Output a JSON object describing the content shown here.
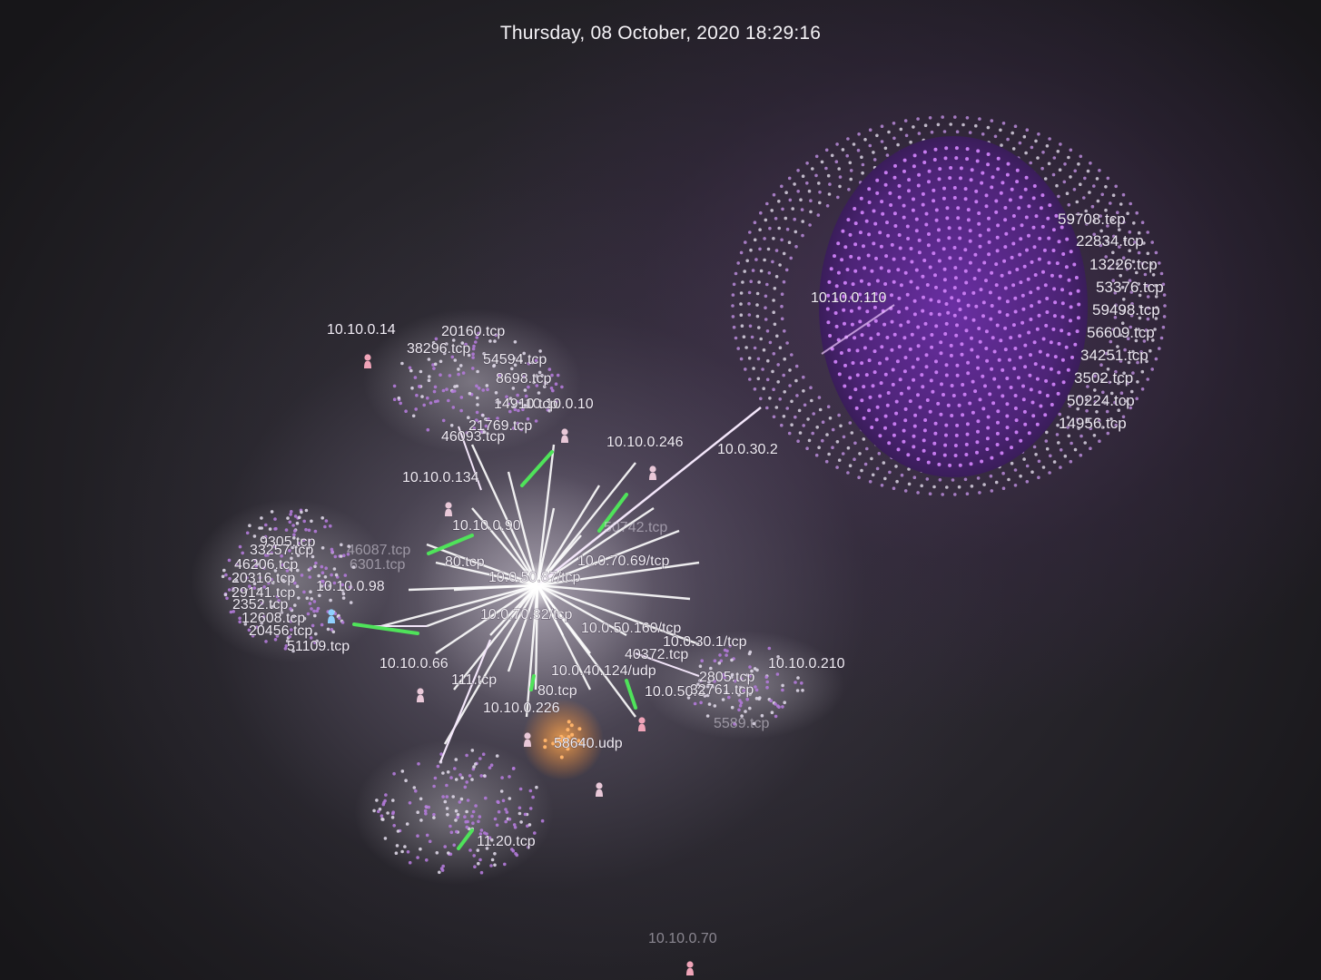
{
  "header": {
    "timestamp": "Thursday, 08 October, 2020 18:29:16"
  },
  "colors": {
    "edge": "#ffffff",
    "edge_accent": "#4fe35a",
    "leaf": "#b06ad8",
    "sphere": "#7a34b8",
    "host_icon": "#e9c8d8"
  },
  "hosts": [
    {
      "id": "h14",
      "label": "10.10.0.14",
      "icon": "person-icon"
    },
    {
      "id": "h10",
      "label": "10.10.0.10",
      "icon": "person-icon"
    },
    {
      "id": "h246",
      "label": "10.10.0.246",
      "icon": "person-icon"
    },
    {
      "id": "h134",
      "label": "10.10.0.134",
      "icon": "person-icon"
    },
    {
      "id": "h90",
      "label": "10.10.0.90",
      "icon": "person-icon"
    },
    {
      "id": "h98",
      "label": "10.10.0.98",
      "icon": "person-icon"
    },
    {
      "id": "h66",
      "label": "10.10.0.66",
      "icon": "person-icon"
    },
    {
      "id": "h226",
      "label": "10.10.0.226",
      "icon": "person-icon"
    },
    {
      "id": "h210",
      "label": "10.10.0.210",
      "icon": "person-icon"
    },
    {
      "id": "h110",
      "label": "10.10.0.110",
      "icon": "person-icon"
    },
    {
      "id": "h70",
      "label": "10.10.0.70",
      "icon": "person-icon"
    }
  ],
  "hub": {
    "label": "10.0.50.87/tcp"
  },
  "service_labels": [
    "10.0.30.2",
    "10.0.70.69/tcp",
    "10.0.50.160/tcp",
    "10.0.40.124/udp",
    "10.0.70.32/tcp",
    "10.0.50.3",
    "10.0.30.1/tcp",
    "80.tcp",
    "111.tcp",
    "50742.tcp"
  ],
  "ports": {
    "cluster_14": [
      "20160.tcp",
      "38296.tcp",
      "54594.tcp",
      "8698.tcp",
      "14910.tcp",
      "21769.tcp",
      "46093.tcp"
    ],
    "cluster_98": [
      "9305.tcp",
      "33257.tcp",
      "46206.tcp",
      "20316.tcp",
      "29141.tcp",
      "2352.tcp",
      "12608.tcp",
      "20456.tcp",
      "51109.tcp",
      "46087.tcp",
      "6301.tcp"
    ],
    "cluster_210": [
      "40372.tcp",
      "2805.tcp",
      "32761.tcp",
      "5589.tcp"
    ],
    "cluster_226": [
      "58640.udp",
      "80.tcp",
      "11.20.tcp"
    ],
    "cluster_110": [
      "59708.tcp",
      "22834.tcp",
      "13226.tcp",
      "53376.tcp",
      "59498.tcp",
      "56609.tcp",
      "34251.tcp",
      "3502.tcp",
      "50224.tcp",
      "14956.tcp"
    ]
  }
}
